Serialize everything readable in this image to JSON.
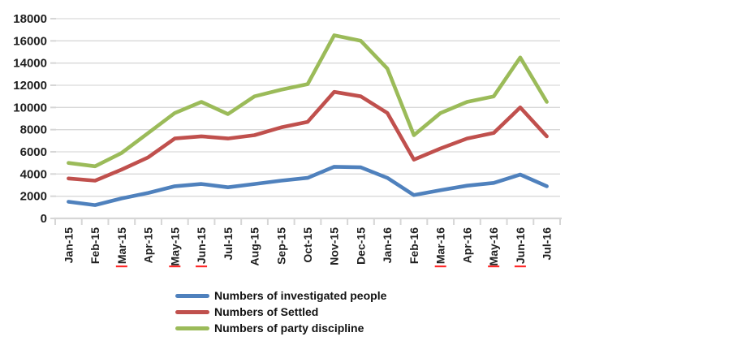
{
  "chart_data": {
    "type": "line",
    "title": "",
    "xlabel": "",
    "ylabel": "",
    "ylim": [
      0,
      18000
    ],
    "ytick_step": 2000,
    "y_tick_labels": [
      "0",
      "2000",
      "4000",
      "6000",
      "8000",
      "10000",
      "12000",
      "14000",
      "16000",
      "18000"
    ],
    "grid": true,
    "legend_position": "bottom-left",
    "categories": [
      "Jan-15",
      "Feb-15",
      "Mar-15",
      "Apr-15",
      "May-15",
      "Jun-15",
      "Jul-15",
      "Aug-15",
      "Sep-15",
      "Oct-15",
      "Nov-15",
      "Dec-15",
      "Jan-16",
      "Feb-16",
      "Mar-16",
      "Apr-16",
      "May-16",
      "Jun-16",
      "Jul-16"
    ],
    "series": [
      {
        "name": "Numbers of investigated people",
        "key": "investigated-people",
        "color": "#4F81BD",
        "values": [
          1500,
          1200,
          1800,
          2300,
          2900,
          3100,
          2800,
          3100,
          3400,
          3650,
          4650,
          4600,
          3650,
          2100,
          2550,
          2950,
          3200,
          3950,
          2900
        ]
      },
      {
        "name": "Numbers of Settled",
        "key": "settled",
        "color": "#C0504D",
        "values": [
          3600,
          3400,
          4400,
          5500,
          7200,
          7400,
          7200,
          7500,
          8200,
          8700,
          11400,
          11000,
          9500,
          5300,
          6300,
          7200,
          7700,
          10000,
          7400
        ]
      },
      {
        "name": "Numbers of party discipline",
        "key": "party-discipline",
        "color": "#9BBB59",
        "values": [
          5000,
          4700,
          5900,
          7700,
          9500,
          10500,
          9400,
          11000,
          11600,
          12100,
          16500,
          16000,
          13500,
          7500,
          9500,
          10500,
          11000,
          14500,
          10500
        ]
      }
    ],
    "spellcheck_flagged_labels": [
      "Mar-15",
      "May-15",
      "Jun-15",
      "Mar-16",
      "May-16",
      "Jun-16"
    ]
  },
  "colors": {
    "background": "#FFFFFF",
    "gridline": "#D9D9D9",
    "axis_line": "#D6D6D6",
    "tick": "#D6D6D6",
    "axis_text": "#1F1F1F",
    "spellcheck_underline": "#FF2A2A"
  }
}
